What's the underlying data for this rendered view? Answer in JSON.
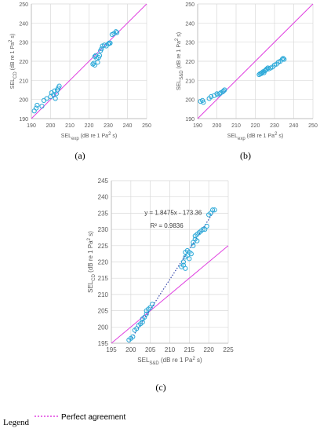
{
  "colors": {
    "marker": "#2aa8d8",
    "agreement": "#e040e0",
    "trend": "#3344aa",
    "grid": "#d9d9d9",
    "axis": "#bfbfbf",
    "tick": "#595959"
  },
  "chart_data": [
    {
      "id": "a",
      "type": "scatter",
      "caption": "(a)",
      "xlabel": {
        "base": "SEL",
        "sub": "exp",
        "tail": " (dB re 1 Pa",
        "sup": "2",
        "end": " s)"
      },
      "ylabel": {
        "base": "SEL",
        "sub": "CD",
        "tail": " (dB re 1 Pa",
        "sup": "2",
        "end": " s)"
      },
      "xlim": [
        190,
        250
      ],
      "ylim": [
        190,
        250
      ],
      "xticks": [
        190,
        200,
        210,
        220,
        230,
        240,
        250
      ],
      "yticks": [
        190,
        200,
        210,
        220,
        230,
        240,
        250
      ],
      "grid": true,
      "reference_line": "Perfect agreement",
      "points": [
        [
          191.5,
          194.0
        ],
        [
          192.5,
          195.5
        ],
        [
          193.0,
          197.0
        ],
        [
          195.5,
          196.5
        ],
        [
          196.5,
          199.5
        ],
        [
          198.0,
          200.5
        ],
        [
          200.0,
          201.5
        ],
        [
          200.5,
          203.5
        ],
        [
          201.5,
          202.5
        ],
        [
          202.0,
          204.5
        ],
        [
          202.5,
          200.5
        ],
        [
          203.0,
          203.0
        ],
        [
          203.5,
          205.0
        ],
        [
          204.0,
          206.0
        ],
        [
          204.5,
          207.0
        ],
        [
          222.0,
          218.5
        ],
        [
          222.5,
          219.0
        ],
        [
          223.0,
          218.0
        ],
        [
          223.0,
          222.5
        ],
        [
          223.5,
          223.0
        ],
        [
          224.0,
          221.5
        ],
        [
          224.5,
          219.5
        ],
        [
          225.0,
          222.0
        ],
        [
          225.5,
          223.0
        ],
        [
          226.0,
          225.5
        ],
        [
          226.5,
          226.5
        ],
        [
          227.0,
          228.0
        ],
        [
          228.0,
          228.5
        ],
        [
          229.0,
          228.0
        ],
        [
          230.0,
          229.0
        ],
        [
          230.5,
          229.5
        ],
        [
          231.0,
          229.5
        ],
        [
          232.0,
          234.0
        ],
        [
          233.0,
          234.5
        ],
        [
          234.0,
          235.5
        ],
        [
          234.5,
          235.0
        ]
      ]
    },
    {
      "id": "b",
      "type": "scatter",
      "caption": "(b)",
      "xlabel": {
        "base": "SEL",
        "sub": "exp",
        "tail": " (dB re 1 Pa",
        "sup": "2",
        "end": " s)"
      },
      "ylabel": {
        "base": "SEL",
        "sub": "S&D",
        "tail": " (dB re 1 Pa",
        "sup": "2",
        "end": " s)"
      },
      "xlim": [
        190,
        250
      ],
      "ylim": [
        190,
        250
      ],
      "xticks": [
        190,
        200,
        210,
        220,
        230,
        240,
        250
      ],
      "yticks": [
        190,
        200,
        210,
        220,
        230,
        240,
        250
      ],
      "grid": true,
      "reference_line": "Perfect agreement",
      "points": [
        [
          191.5,
          199.0
        ],
        [
          192.5,
          199.5
        ],
        [
          193.0,
          198.5
        ],
        [
          196.0,
          200.5
        ],
        [
          197.0,
          201.5
        ],
        [
          198.5,
          202.0
        ],
        [
          200.0,
          203.0
        ],
        [
          200.5,
          202.5
        ],
        [
          201.5,
          203.0
        ],
        [
          202.0,
          203.5
        ],
        [
          203.0,
          204.0
        ],
        [
          203.5,
          204.5
        ],
        [
          204.0,
          205.0
        ],
        [
          222.0,
          213.0
        ],
        [
          222.5,
          213.5
        ],
        [
          223.0,
          213.5
        ],
        [
          223.5,
          214.0
        ],
        [
          224.0,
          214.5
        ],
        [
          224.5,
          214.0
        ],
        [
          225.0,
          215.0
        ],
        [
          225.5,
          215.5
        ],
        [
          226.0,
          216.0
        ],
        [
          226.5,
          216.5
        ],
        [
          227.0,
          216.0
        ],
        [
          228.0,
          216.5
        ],
        [
          229.0,
          217.0
        ],
        [
          230.0,
          218.0
        ],
        [
          231.0,
          218.5
        ],
        [
          232.0,
          219.5
        ],
        [
          233.0,
          220.0
        ],
        [
          234.0,
          221.0
        ],
        [
          234.5,
          221.5
        ],
        [
          235.0,
          221.0
        ]
      ]
    },
    {
      "id": "c",
      "type": "scatter",
      "caption": "(c)",
      "xlabel": {
        "base": "SEL",
        "sub": "S&D",
        "tail": " (dB re 1 Pa",
        "sup": "2",
        "end": " s)"
      },
      "ylabel": {
        "base": "SEL",
        "sub": "CD",
        "tail": " (dB re 1 Pa",
        "sup": "2",
        "end": " s)"
      },
      "xlim": [
        195,
        225
      ],
      "ylim": [
        195,
        245
      ],
      "xticks": [
        195,
        200,
        205,
        210,
        215,
        220,
        225
      ],
      "yticks": [
        195,
        200,
        205,
        210,
        215,
        220,
        225,
        230,
        235,
        240,
        245
      ],
      "grid": true,
      "reference_line": "Perfect agreement",
      "trendline": {
        "slope": 1.8475,
        "intercept": -173.36,
        "x_range": [
          199.5,
          221.5
        ]
      },
      "equation": "y = 1.8475x - 173.36",
      "r2": "R² = 0.9836",
      "points": [
        [
          199.5,
          196.0
        ],
        [
          200.0,
          196.5
        ],
        [
          200.5,
          197.0
        ],
        [
          201.0,
          199.0
        ],
        [
          201.5,
          199.5
        ],
        [
          202.0,
          200.5
        ],
        [
          202.5,
          201.0
        ],
        [
          203.0,
          201.5
        ],
        [
          203.0,
          202.5
        ],
        [
          203.5,
          203.0
        ],
        [
          204.0,
          204.0
        ],
        [
          204.0,
          205.0
        ],
        [
          204.5,
          205.5
        ],
        [
          205.0,
          206.0
        ],
        [
          205.5,
          207.0
        ],
        [
          213.0,
          218.5
        ],
        [
          213.5,
          219.0
        ],
        [
          213.5,
          220.0
        ],
        [
          214.0,
          218.0
        ],
        [
          214.0,
          221.5
        ],
        [
          214.0,
          223.0
        ],
        [
          214.5,
          222.0
        ],
        [
          214.5,
          223.5
        ],
        [
          215.0,
          221.0
        ],
        [
          215.0,
          223.0
        ],
        [
          215.5,
          222.5
        ],
        [
          216.0,
          225.0
        ],
        [
          216.0,
          226.0
        ],
        [
          216.5,
          227.0
        ],
        [
          216.5,
          228.0
        ],
        [
          217.0,
          228.5
        ],
        [
          217.0,
          226.5
        ],
        [
          217.5,
          229.0
        ],
        [
          218.0,
          229.5
        ],
        [
          218.5,
          230.0
        ],
        [
          219.0,
          230.0
        ],
        [
          219.5,
          231.0
        ],
        [
          220.0,
          234.5
        ],
        [
          220.5,
          235.0
        ],
        [
          221.0,
          236.0
        ],
        [
          221.5,
          236.0
        ]
      ]
    }
  ],
  "legend": {
    "title": "Legend",
    "label": "Perfect agreement"
  }
}
